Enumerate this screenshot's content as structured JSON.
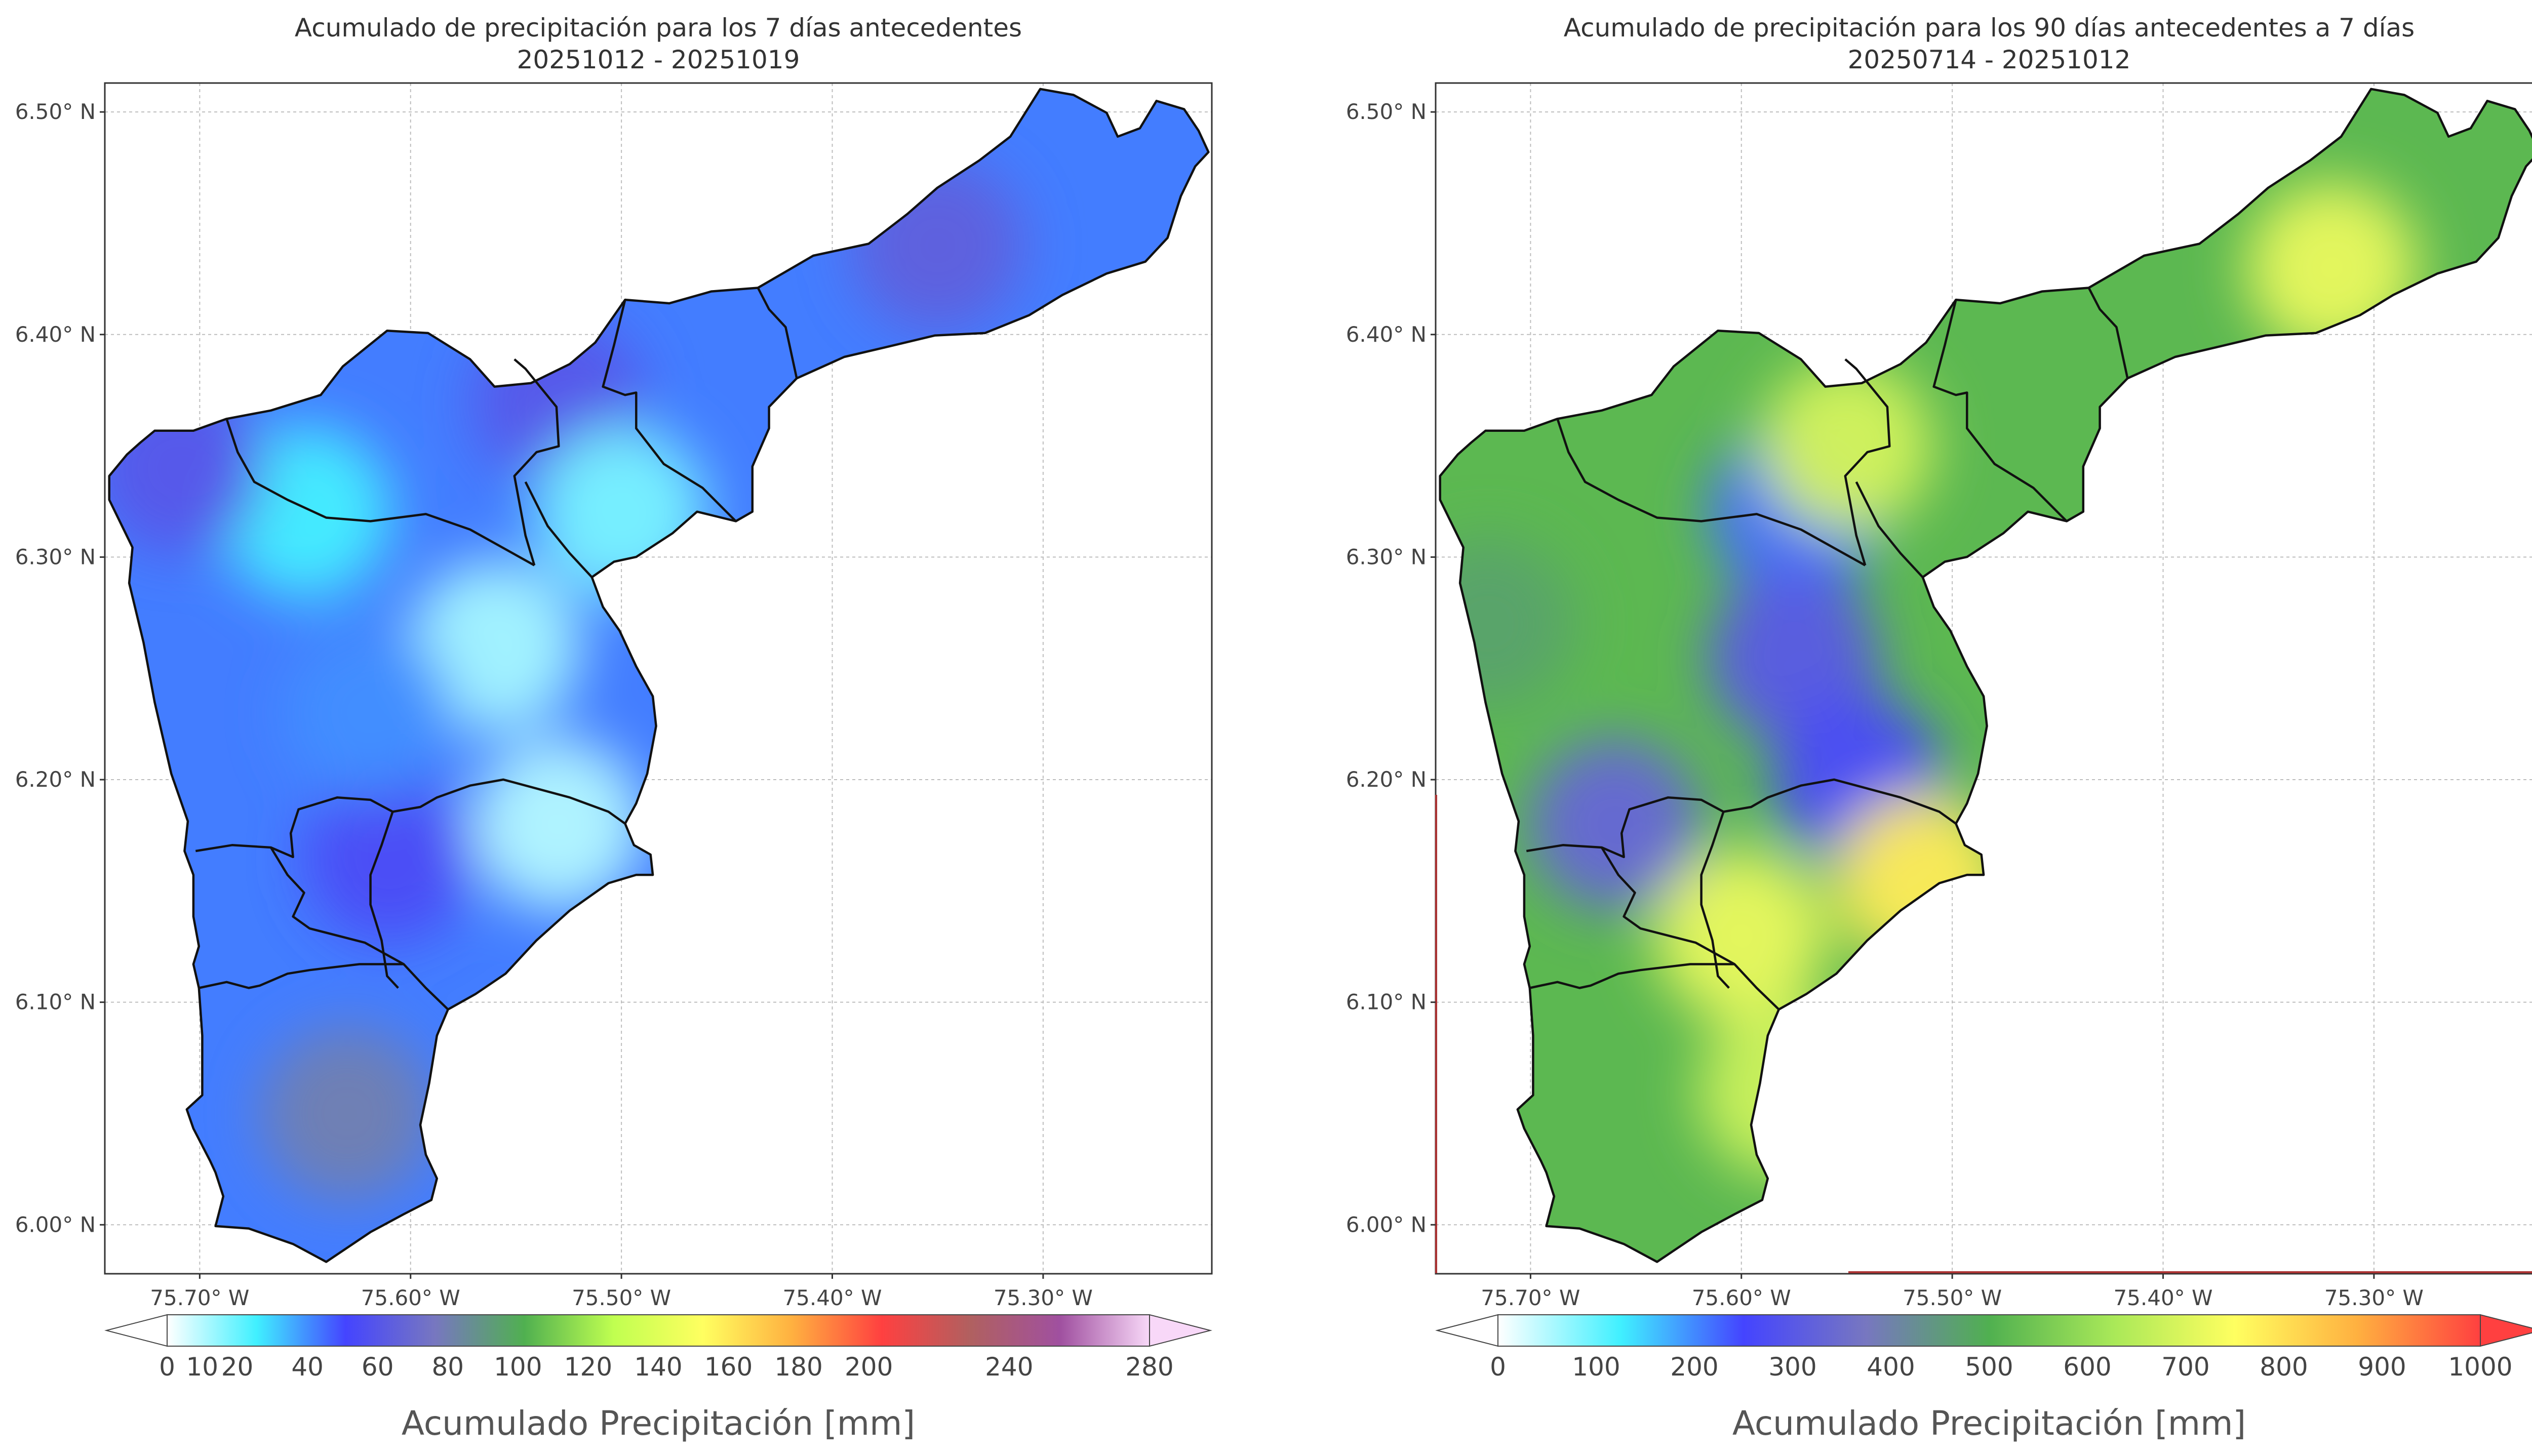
{
  "chart_data": [
    {
      "type": "heatmap",
      "title": "Acumulado de precipitación para los 7 días antecedentes",
      "subtitle": "20251012 - 20251019",
      "xlim": [
        -75.745,
        -75.22
      ],
      "ylim": [
        5.978,
        6.513
      ],
      "x_ticks": [
        "75.70° W",
        "75.60° W",
        "75.50° W",
        "75.40° W",
        "75.30° W"
      ],
      "y_ticks": [
        "6.50° N",
        "6.40° N",
        "6.30° N",
        "6.20° N",
        "6.10° N",
        "6.00° N"
      ],
      "colorbar": {
        "label": "Acumulado Precipitación [mm]",
        "ticks": [
          "0",
          "10",
          "20",
          "40",
          "60",
          "80",
          "100",
          "120",
          "140",
          "160",
          "180",
          "200",
          "240",
          "280"
        ],
        "tick_values": [
          0,
          10,
          20,
          40,
          60,
          80,
          100,
          120,
          140,
          160,
          180,
          200,
          240,
          280
        ],
        "range": [
          0,
          280
        ],
        "extend": "both",
        "colors": [
          "#ffffff",
          "#40f0ff",
          "#4444ff",
          "#7777c0",
          "#50b050",
          "#c0ff50",
          "#ffff60",
          "#ffb040",
          "#ff4040",
          "#b06060",
          "#a050a0",
          "#f8d8f8"
        ]
      },
      "region_values": [
        {
          "lon": -75.63,
          "lat": 6.05,
          "value": 80
        },
        {
          "lon": -75.61,
          "lat": 6.165,
          "value": 55
        },
        {
          "lon": -75.53,
          "lat": 6.18,
          "value": 10
        },
        {
          "lon": -75.56,
          "lat": 6.26,
          "value": 12
        },
        {
          "lon": -75.65,
          "lat": 6.32,
          "value": 25
        },
        {
          "lon": -75.71,
          "lat": 6.34,
          "value": 60
        },
        {
          "lon": -75.53,
          "lat": 6.37,
          "value": 60
        },
        {
          "lon": -75.35,
          "lat": 6.44,
          "value": 65
        },
        {
          "lon": -75.5,
          "lat": 6.32,
          "value": 18
        },
        {
          "lon": -75.62,
          "lat": 6.23,
          "value": 40
        }
      ]
    },
    {
      "type": "heatmap",
      "title": "Acumulado de precipitación para los 90 días antecedentes a 7 días",
      "subtitle": "20250714 - 20251012",
      "xlim": [
        -75.745,
        -75.22
      ],
      "ylim": [
        5.978,
        6.513
      ],
      "x_ticks": [
        "75.70° W",
        "75.60° W",
        "75.50° W",
        "75.40° W",
        "75.30° W"
      ],
      "y_ticks": [
        "6.50° N",
        "6.40° N",
        "6.30° N",
        "6.20° N",
        "6.10° N",
        "6.00° N"
      ],
      "colorbar": {
        "label": "Acumulado Precipitación [mm]",
        "ticks": [
          "0",
          "100",
          "200",
          "300",
          "400",
          "500",
          "600",
          "700",
          "800",
          "900",
          "1000"
        ],
        "tick_values": [
          0,
          100,
          200,
          300,
          400,
          500,
          600,
          700,
          800,
          900,
          1000
        ],
        "range": [
          0,
          1000
        ],
        "extend": "both",
        "colors": [
          "#ffffff",
          "#40f0ff",
          "#4444ff",
          "#7777c0",
          "#50b050",
          "#a8e858",
          "#ffff60",
          "#ffb040",
          "#ff4040"
        ]
      },
      "region_values": [
        {
          "lon": -75.32,
          "lat": 6.43,
          "value": 720
        },
        {
          "lon": -75.575,
          "lat": 6.32,
          "value": 220
        },
        {
          "lon": -75.575,
          "lat": 6.255,
          "value": 300
        },
        {
          "lon": -75.545,
          "lat": 6.2,
          "value": 260
        },
        {
          "lon": -75.66,
          "lat": 6.18,
          "value": 330
        },
        {
          "lon": -75.515,
          "lat": 6.155,
          "value": 780
        },
        {
          "lon": -75.6,
          "lat": 6.13,
          "value": 720
        },
        {
          "lon": -75.58,
          "lat": 6.06,
          "value": 680
        },
        {
          "lon": -75.55,
          "lat": 6.35,
          "value": 690
        },
        {
          "lon": -75.72,
          "lat": 6.27,
          "value": 470
        }
      ]
    }
  ]
}
